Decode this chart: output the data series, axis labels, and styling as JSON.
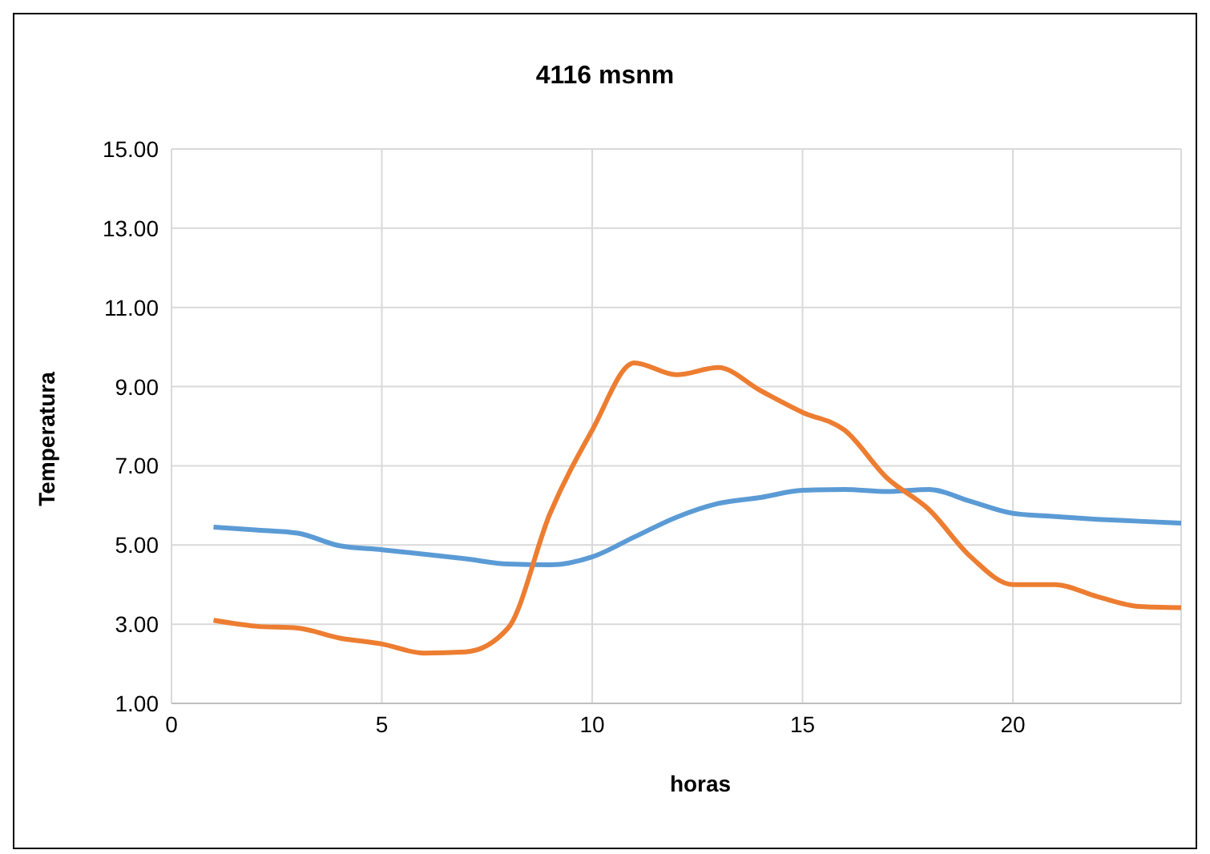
{
  "chart_data": {
    "type": "line",
    "title": "4116 msnm",
    "xlabel": "horas",
    "ylabel": "Temperatura",
    "x": [
      1,
      2,
      3,
      4,
      5,
      6,
      7,
      8,
      9,
      10,
      11,
      12,
      13,
      14,
      15,
      16,
      17,
      18,
      19,
      20,
      21,
      22,
      23,
      24
    ],
    "series": [
      {
        "color": "#5b9bd5",
        "values": [
          5.45,
          5.38,
          5.3,
          4.98,
          4.88,
          4.77,
          4.65,
          4.52,
          4.5,
          4.7,
          5.2,
          5.7,
          6.05,
          6.2,
          6.38,
          6.4,
          6.35,
          6.4,
          6.1,
          5.8,
          5.72,
          5.65,
          5.6,
          5.55
        ]
      },
      {
        "color": "#ed7d31",
        "values": [
          3.1,
          2.95,
          2.9,
          2.65,
          2.5,
          2.27,
          2.3,
          2.9,
          5.8,
          7.9,
          9.6,
          9.3,
          9.48,
          8.9,
          8.35,
          7.9,
          6.7,
          5.9,
          4.7,
          4.0,
          4.0,
          3.7,
          3.45,
          3.42
        ]
      }
    ],
    "xlim": [
      0,
      24
    ],
    "xticks": [
      0,
      5,
      10,
      15,
      20
    ],
    "ylim": [
      1,
      15
    ],
    "yticks": [
      {
        "value": 1,
        "label": "1.00"
      },
      {
        "value": 3,
        "label": "3.00"
      },
      {
        "value": 5,
        "label": "5.00"
      },
      {
        "value": 7,
        "label": "7.00"
      },
      {
        "value": 9,
        "label": "9.00"
      },
      {
        "value": 11,
        "label": "11.00"
      },
      {
        "value": 13,
        "label": "13.00"
      },
      {
        "value": 15,
        "label": "15.00"
      }
    ],
    "grid": true,
    "legend": false,
    "marker": "none",
    "line_style": "solid"
  }
}
